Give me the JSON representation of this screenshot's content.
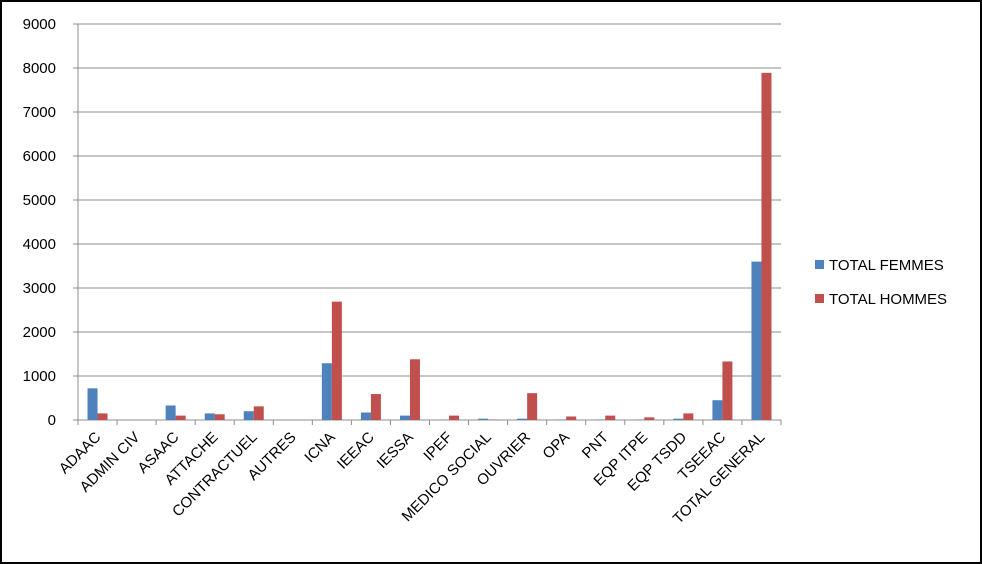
{
  "chart_data": {
    "type": "bar",
    "categories": [
      "ADAAC",
      "ADMIN CIV",
      "ASAAC",
      "ATTACHE",
      "CONTRACTUEL",
      "AUTRES",
      "ICNA",
      "IEEAC",
      "IESSA",
      "IPEF",
      "MEDICO SOCIAL",
      "OUVRIER",
      "OPA",
      "PNT",
      "EQP ITPE",
      "EQP TSDD",
      "TSEEAC",
      "TOTAL GENERAL"
    ],
    "series": [
      {
        "name": "TOTAL FEMMES",
        "color": "#4f81bd",
        "values": [
          720,
          0,
          330,
          150,
          200,
          0,
          1290,
          170,
          100,
          10,
          30,
          30,
          10,
          10,
          10,
          30,
          450,
          3600
        ]
      },
      {
        "name": "TOTAL HOMMES",
        "color": "#c0504d",
        "values": [
          150,
          0,
          100,
          130,
          310,
          0,
          2690,
          590,
          1380,
          100,
          10,
          610,
          80,
          100,
          60,
          150,
          1330,
          7890
        ]
      }
    ],
    "ylim": [
      0,
      9000
    ],
    "yticks": [
      0,
      1000,
      2000,
      3000,
      4000,
      5000,
      6000,
      7000,
      8000,
      9000
    ],
    "grid": true,
    "legend": "right"
  }
}
